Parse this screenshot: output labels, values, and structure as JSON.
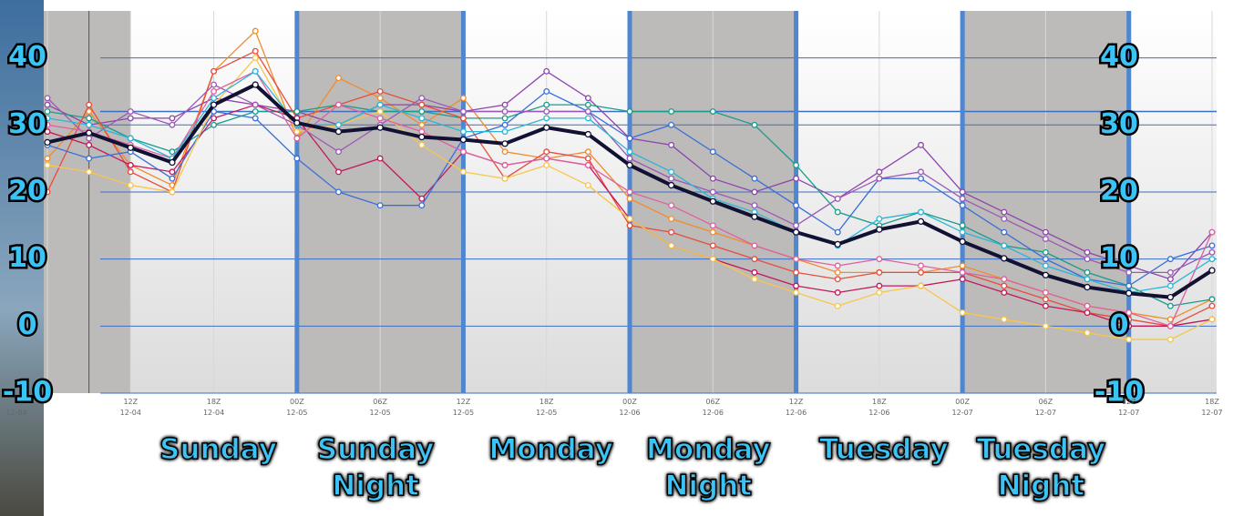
{
  "chart_data": {
    "type": "line",
    "categories": [
      null,
      null,
      "12Z",
      null,
      "18Z",
      null,
      "00Z",
      null,
      "06Z",
      null,
      "12Z",
      null,
      "18Z",
      null,
      "00Z",
      null,
      "06Z",
      null,
      "12Z",
      null,
      "18Z",
      null,
      "00Z",
      null,
      "06Z",
      null,
      "12Z",
      null,
      "18Z"
    ],
    "category_dates": [
      "12-04",
      null,
      "12-04",
      null,
      "12-04",
      null,
      "12-05",
      null,
      "12-05",
      null,
      "12-05",
      null,
      "12-05",
      null,
      "12-06",
      null,
      "12-06",
      null,
      "12-06",
      null,
      "12-06",
      null,
      "12-07",
      null,
      "12-07",
      null,
      "12-07",
      null,
      "12-07"
    ],
    "periods": [
      "Sunday",
      "Sunday Night",
      "Monday",
      "Monday Night",
      "Tuesday",
      "Tuesday Night"
    ],
    "ylim": [
      -10,
      47
    ],
    "yticks": [
      -10,
      0,
      10,
      20,
      30,
      40
    ],
    "reference_line": 32,
    "grid": true,
    "series": [
      {
        "color": "#f28c28",
        "values": [
          25,
          32,
          24,
          21,
          38,
          44,
          28,
          37,
          34,
          30,
          34,
          26,
          25,
          26,
          19,
          16,
          14,
          12,
          10,
          8,
          8,
          8,
          9,
          7,
          5,
          3,
          2,
          1,
          4
        ]
      },
      {
        "color": "#8e44ad",
        "values": [
          33,
          30,
          31,
          31,
          34,
          33,
          32,
          30,
          33,
          33,
          32,
          33,
          38,
          34,
          28,
          27,
          22,
          20,
          22,
          19,
          23,
          27,
          20,
          17,
          14,
          11,
          9,
          7,
          14
        ]
      },
      {
        "color": "#1a9c8c",
        "values": [
          32,
          31,
          28,
          26,
          30,
          32,
          32,
          33,
          32,
          32,
          31,
          31,
          33,
          33,
          32,
          32,
          32,
          30,
          24,
          17,
          15,
          17,
          15,
          12,
          11,
          8,
          6,
          3,
          4
        ]
      },
      {
        "color": "#e74c3c",
        "values": [
          20,
          33,
          23,
          20,
          38,
          41,
          31,
          33,
          35,
          33,
          31,
          22,
          26,
          25,
          15,
          14,
          12,
          10,
          8,
          7,
          8,
          8,
          8,
          6,
          4,
          2,
          1,
          0,
          3
        ]
      },
      {
        "color": "#c2185b",
        "values": [
          29,
          27,
          24,
          23,
          31,
          33,
          31,
          23,
          25,
          19,
          26,
          24,
          25,
          24,
          16,
          12,
          10,
          8,
          6,
          5,
          6,
          6,
          7,
          5,
          3,
          2,
          0,
          0,
          1
        ]
      },
      {
        "color": "#3a6fd8",
        "values": [
          27,
          25,
          26,
          22,
          32,
          31,
          25,
          20,
          18,
          18,
          28,
          30,
          35,
          32,
          28,
          30,
          26,
          22,
          18,
          14,
          22,
          22,
          18,
          14,
          10,
          7,
          6,
          10,
          12
        ]
      },
      {
        "color": "#f7c64a",
        "values": [
          24,
          23,
          21,
          20,
          33,
          40,
          29,
          30,
          32,
          27,
          23,
          22,
          24,
          21,
          16,
          12,
          10,
          7,
          5,
          3,
          5,
          6,
          2,
          1,
          0,
          -1,
          -2,
          -2,
          1
        ]
      },
      {
        "color": "#9b59b6",
        "values": [
          34,
          28,
          32,
          30,
          36,
          33,
          30,
          26,
          30,
          34,
          32,
          32,
          32,
          32,
          25,
          22,
          20,
          18,
          15,
          19,
          22,
          23,
          19,
          16,
          13,
          10,
          8,
          8,
          11
        ]
      },
      {
        "color": "#e05fa0",
        "values": [
          30,
          29,
          27,
          25,
          35,
          38,
          28,
          33,
          31,
          29,
          26,
          24,
          25,
          24,
          20,
          18,
          15,
          12,
          10,
          9,
          10,
          9,
          8,
          7,
          5,
          3,
          2,
          0,
          14
        ]
      },
      {
        "color": "#29b6d9",
        "values": [
          31,
          30,
          28,
          25,
          34,
          38,
          30,
          30,
          33,
          31,
          29,
          29,
          31,
          31,
          26,
          23,
          19,
          17,
          14,
          12,
          16,
          17,
          14,
          12,
          9,
          7,
          5,
          6,
          10
        ]
      },
      {
        "color": "#111133",
        "values": [
          27.4,
          28.8,
          26.6,
          24.4,
          33,
          36,
          30.3,
          29,
          29.6,
          28.2,
          27.8,
          27.2,
          29.6,
          28.6,
          24,
          21,
          18.6,
          16.3,
          14,
          12.2,
          14.4,
          15.6,
          12.6,
          10.1,
          7.6,
          5.8,
          4.9,
          4.3,
          8.3
        ]
      }
    ]
  }
}
